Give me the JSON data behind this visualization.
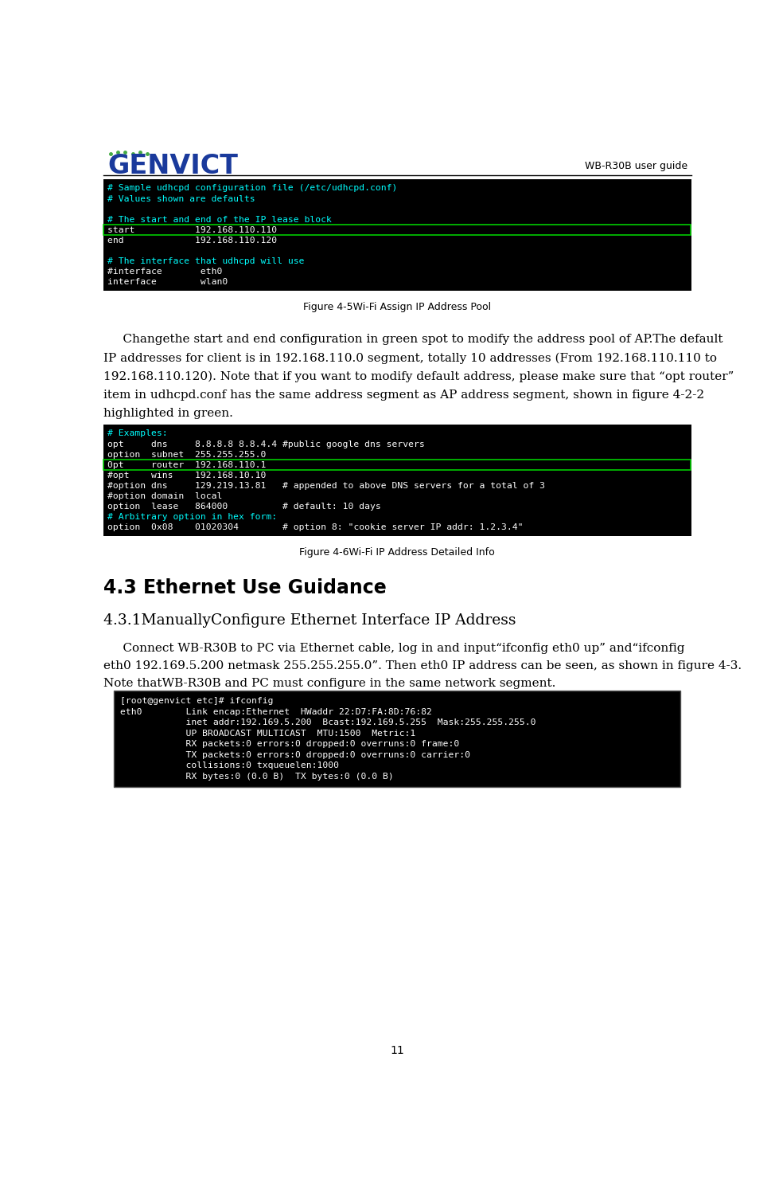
{
  "page_width": 9.74,
  "page_height": 14.99,
  "dpi": 100,
  "header_right_text": "WB-R30B user guide",
  "page_number": "11",
  "code_block1_lines": [
    {
      "text": "# Sample udhcpd configuration file (/etc/udhcpd.conf)",
      "color": "cyan"
    },
    {
      "text": "# Values shown are defaults",
      "color": "cyan"
    },
    {
      "text": "",
      "color": "white"
    },
    {
      "text": "# The start and end of the IP lease block",
      "color": "cyan"
    },
    {
      "text": "start           192.168.110.110",
      "color": "white",
      "highlight": "green"
    },
    {
      "text": "end             192.168.110.120",
      "color": "white"
    },
    {
      "text": "",
      "color": "white"
    },
    {
      "text": "# The interface that udhcpd will use",
      "color": "cyan"
    },
    {
      "text": "#interface       eth0",
      "color": "white"
    },
    {
      "text": "interface        wlan0",
      "color": "white"
    }
  ],
  "fig4_5_caption": "Figure 4-5Wi-Fi Assign IP Address Pool",
  "body_text1_lines": [
    "     Changethe start and end configuration in green spot to modify the address pool of AP.The default",
    "IP addresses for client is in 192.168.110.0 segment, totally 10 addresses (From 192.168.110.110 to",
    "192.168.110.120). Note that if you want to modify default address, please make sure that “opt router”",
    "item in udhcpd.conf has the same address segment as AP address segment, shown in figure 4-2-2",
    "highlighted in green."
  ],
  "code_block2_lines": [
    {
      "text": "# Examples:",
      "color": "cyan"
    },
    {
      "text": "opt     dns     8.8.8.8 8.8.4.4 #public google dns servers",
      "color": "white"
    },
    {
      "text": "option  subnet  255.255.255.0",
      "color": "white"
    },
    {
      "text": "0pt     router  192.168.110.1",
      "color": "white",
      "highlight": "green"
    },
    {
      "text": "#opt    wins    192.168.10.10",
      "color": "white"
    },
    {
      "text": "#option dns     129.219.13.81   # appended to above DNS servers for a total of 3",
      "color": "white"
    },
    {
      "text": "#option domain  local",
      "color": "white"
    },
    {
      "text": "option  lease   864000          # default: 10 days",
      "color": "white"
    },
    {
      "text": "# Arbitrary option in hex form:",
      "color": "cyan"
    },
    {
      "text": "option  0x08    01020304        # option 8: \"cookie server IP addr: 1.2.3.4\"",
      "color": "white"
    }
  ],
  "fig4_6_caption": "Figure 4-6Wi-Fi IP Address Detailed Info",
  "section_43_title": "4.3 Ethernet Use Guidance",
  "section_431_title": "4.3.1ManuallyConﬁgure Ethernet Interface IP Address",
  "body_text2_lines": [
    "     Connect WB-R30B to PC via Ethernet cable, log in and input“ifconfig eth0 up” and“ifconfig",
    "eth0 192.169.5.200 netmask 255.255.255.0”. Then eth0 IP address can be seen, as shown in figure 4-3.",
    "Note thatWB-R30B and PC must configure in the same network segment."
  ],
  "code_block3_lines": [
    {
      "text": "[root@genvict etc]# ifconfig",
      "color": "white"
    },
    {
      "text": "eth0        Link encap:Ethernet  HWaddr 22:D7:FA:8D:76:82",
      "color": "white"
    },
    {
      "text": "            inet addr:192.169.5.200  Bcast:192.169.5.255  Mask:255.255.255.0",
      "color": "white"
    },
    {
      "text": "            UP BROADCAST MULTICAST  MTU:1500  Metric:1",
      "color": "white"
    },
    {
      "text": "            RX packets:0 errors:0 dropped:0 overruns:0 frame:0",
      "color": "white"
    },
    {
      "text": "            TX packets:0 errors:0 dropped:0 overruns:0 carrier:0",
      "color": "white"
    },
    {
      "text": "            collisions:0 txqueuelen:1000",
      "color": "white"
    },
    {
      "text": "            RX bytes:0 (0.0 B)  TX bytes:0 (0.0 B)",
      "color": "white"
    }
  ],
  "logo_text_genvict": "GENVICT",
  "logo_text_color": "#1a3a9c",
  "terminal_bg": "#000000",
  "code3_bg": "#000000",
  "code3_border": "#555555"
}
